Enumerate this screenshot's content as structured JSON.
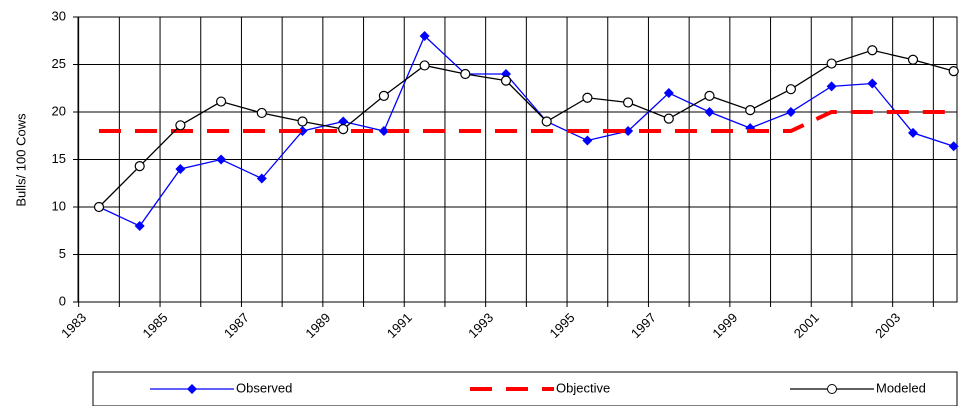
{
  "chart_data": {
    "type": "line",
    "y_label": "Bulls/ 100 Cows",
    "categories": [
      "1983",
      null,
      "1985",
      null,
      "1987",
      null,
      "1989",
      null,
      "1991",
      null,
      "1993",
      null,
      "1995",
      null,
      "1997",
      null,
      "1999",
      null,
      "2001",
      null,
      "2003",
      null
    ],
    "series": [
      {
        "name": "Observed",
        "color": "#0000ff",
        "marker": "diamond",
        "dash": false,
        "values": [
          10,
          8,
          14,
          15,
          13,
          18,
          19,
          18,
          28,
          24,
          24,
          19,
          17,
          18,
          22,
          20,
          18.3,
          20,
          22.7,
          23,
          17.8,
          16.4
        ]
      },
      {
        "name": "Objective",
        "color": "#ff0000",
        "marker": "none",
        "dash": true,
        "values": [
          18,
          18,
          18,
          18,
          18,
          18,
          18,
          18,
          18,
          18,
          18,
          18,
          18,
          18,
          18,
          18,
          18,
          18,
          20,
          20,
          20,
          20
        ]
      },
      {
        "name": "Modeled",
        "color": "#000000",
        "marker": "circle",
        "dash": false,
        "values": [
          10,
          14.3,
          18.6,
          21.1,
          19.9,
          19,
          18.2,
          21.7,
          24.9,
          24,
          23.3,
          19,
          21.5,
          21,
          19.3,
          21.7,
          20.2,
          22.4,
          25.1,
          26.5,
          25.5,
          24.3
        ]
      }
    ],
    "ylim": [
      0,
      30
    ],
    "yticks": [
      0,
      5,
      10,
      15,
      20,
      25,
      30
    ],
    "grid": true
  }
}
